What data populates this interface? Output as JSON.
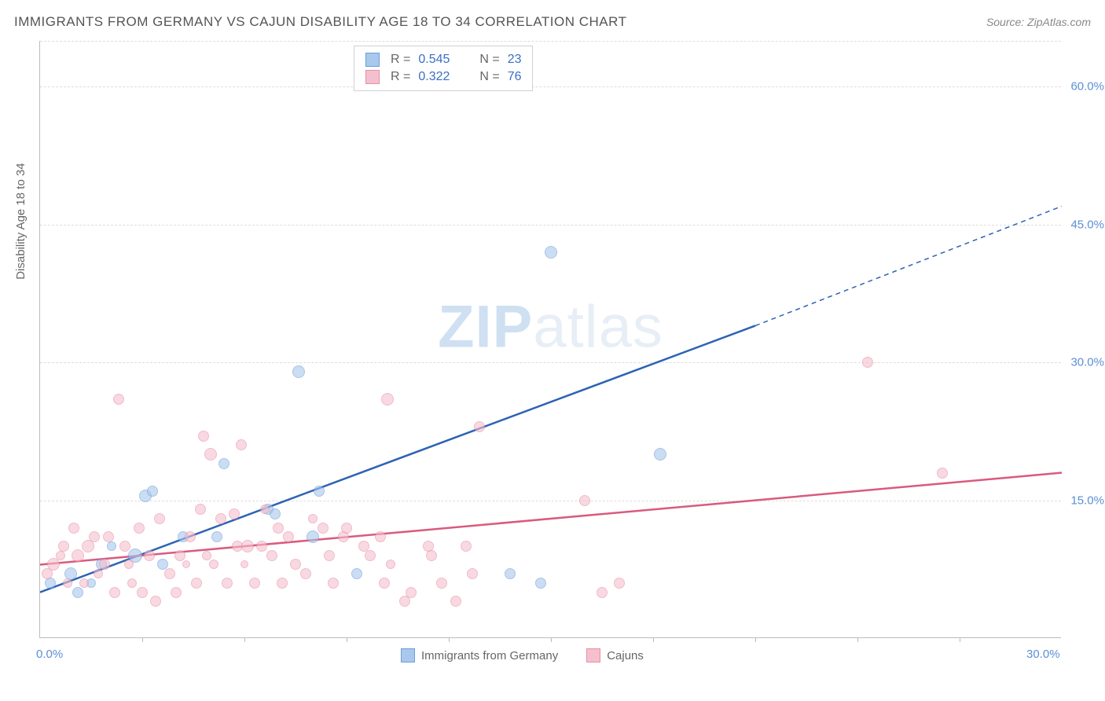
{
  "title": "IMMIGRANTS FROM GERMANY VS CAJUN DISABILITY AGE 18 TO 34 CORRELATION CHART",
  "source": "Source: ZipAtlas.com",
  "y_axis_title": "Disability Age 18 to 34",
  "watermark1": "ZIP",
  "watermark2": "atlas",
  "chart": {
    "type": "scatter",
    "background_color": "#ffffff",
    "grid_color": "#dddddd",
    "axis_color": "#bbbbbb",
    "tick_label_color": "#5b8fd6",
    "xlim": [
      0,
      30
    ],
    "ylim": [
      0,
      65
    ],
    "y_ticks": [
      {
        "v": 15,
        "label": "15.0%"
      },
      {
        "v": 30,
        "label": "30.0%"
      },
      {
        "v": 45,
        "label": "45.0%"
      },
      {
        "v": 60,
        "label": "60.0%"
      }
    ],
    "x_ticks": [
      {
        "v": 0,
        "label": "0.0%"
      },
      {
        "v": 30,
        "label": "30.0%"
      }
    ],
    "x_minor_ticks": [
      3,
      6,
      9,
      12,
      15,
      18,
      21,
      24,
      27
    ],
    "marker_radius_base": 7,
    "marker_opacity": 0.6,
    "series": [
      {
        "key": "germany",
        "name": "Immigrants from Germany",
        "fill": "#a9c8ec",
        "stroke": "#6a9edc",
        "line_color": "#2d63b3",
        "line_width": 2.5,
        "R": "0.545",
        "N": "23",
        "trend": {
          "x1": 0,
          "y1": 5,
          "x2": 21,
          "y2": 34,
          "x2_dash": 30,
          "y2_dash": 47
        },
        "points": [
          {
            "x": 0.3,
            "y": 6,
            "r": 7
          },
          {
            "x": 0.9,
            "y": 7,
            "r": 8
          },
          {
            "x": 1.1,
            "y": 5,
            "r": 7
          },
          {
            "x": 1.8,
            "y": 8,
            "r": 7
          },
          {
            "x": 2.8,
            "y": 9,
            "r": 9
          },
          {
            "x": 3.1,
            "y": 15.5,
            "r": 8
          },
          {
            "x": 3.3,
            "y": 16,
            "r": 7
          },
          {
            "x": 3.6,
            "y": 8,
            "r": 7
          },
          {
            "x": 4.2,
            "y": 11,
            "r": 7
          },
          {
            "x": 5.2,
            "y": 11,
            "r": 7
          },
          {
            "x": 5.4,
            "y": 19,
            "r": 7
          },
          {
            "x": 6.7,
            "y": 14,
            "r": 7
          },
          {
            "x": 6.9,
            "y": 13.5,
            "r": 7
          },
          {
            "x": 7.6,
            "y": 29,
            "r": 8
          },
          {
            "x": 8.0,
            "y": 11,
            "r": 8
          },
          {
            "x": 8.2,
            "y": 16,
            "r": 7
          },
          {
            "x": 9.3,
            "y": 7,
            "r": 7
          },
          {
            "x": 13.8,
            "y": 7,
            "r": 7
          },
          {
            "x": 14.7,
            "y": 6,
            "r": 7
          },
          {
            "x": 15.0,
            "y": 42,
            "r": 8
          },
          {
            "x": 18.2,
            "y": 20,
            "r": 8
          },
          {
            "x": 1.5,
            "y": 6,
            "r": 6
          },
          {
            "x": 2.1,
            "y": 10,
            "r": 6
          }
        ]
      },
      {
        "key": "cajuns",
        "name": "Cajuns",
        "fill": "#f4c0ce",
        "stroke": "#e88fa8",
        "line_color": "#d95a7e",
        "line_width": 2.5,
        "R": "0.322",
        "N": "76",
        "trend": {
          "x1": 0,
          "y1": 8,
          "x2": 30,
          "y2": 18
        },
        "points": [
          {
            "x": 0.2,
            "y": 7,
            "r": 7
          },
          {
            "x": 0.4,
            "y": 8,
            "r": 8
          },
          {
            "x": 0.6,
            "y": 9,
            "r": 6
          },
          {
            "x": 0.7,
            "y": 10,
            "r": 7
          },
          {
            "x": 0.8,
            "y": 6,
            "r": 6
          },
          {
            "x": 1.0,
            "y": 12,
            "r": 7
          },
          {
            "x": 1.1,
            "y": 9,
            "r": 8
          },
          {
            "x": 1.3,
            "y": 6,
            "r": 6
          },
          {
            "x": 1.4,
            "y": 10,
            "r": 8
          },
          {
            "x": 1.6,
            "y": 11,
            "r": 7
          },
          {
            "x": 1.7,
            "y": 7,
            "r": 6
          },
          {
            "x": 1.9,
            "y": 8,
            "r": 7
          },
          {
            "x": 2.0,
            "y": 11,
            "r": 7
          },
          {
            "x": 2.2,
            "y": 5,
            "r": 7
          },
          {
            "x": 2.3,
            "y": 26,
            "r": 7
          },
          {
            "x": 2.5,
            "y": 10,
            "r": 7
          },
          {
            "x": 2.6,
            "y": 8,
            "r": 6
          },
          {
            "x": 2.7,
            "y": 6,
            "r": 6
          },
          {
            "x": 2.9,
            "y": 12,
            "r": 7
          },
          {
            "x": 3.0,
            "y": 5,
            "r": 7
          },
          {
            "x": 3.2,
            "y": 9,
            "r": 7
          },
          {
            "x": 3.4,
            "y": 4,
            "r": 7
          },
          {
            "x": 3.5,
            "y": 13,
            "r": 7
          },
          {
            "x": 3.8,
            "y": 7,
            "r": 7
          },
          {
            "x": 4.0,
            "y": 5,
            "r": 7
          },
          {
            "x": 4.1,
            "y": 9,
            "r": 7
          },
          {
            "x": 4.4,
            "y": 11,
            "r": 7
          },
          {
            "x": 4.6,
            "y": 6,
            "r": 7
          },
          {
            "x": 4.7,
            "y": 14,
            "r": 7
          },
          {
            "x": 4.8,
            "y": 22,
            "r": 7
          },
          {
            "x": 4.9,
            "y": 9,
            "r": 6
          },
          {
            "x": 5.0,
            "y": 20,
            "r": 8
          },
          {
            "x": 5.1,
            "y": 8,
            "r": 6
          },
          {
            "x": 5.3,
            "y": 13,
            "r": 7
          },
          {
            "x": 5.5,
            "y": 6,
            "r": 7
          },
          {
            "x": 5.7,
            "y": 13.5,
            "r": 7
          },
          {
            "x": 5.8,
            "y": 10,
            "r": 7
          },
          {
            "x": 5.9,
            "y": 21,
            "r": 7
          },
          {
            "x": 6.1,
            "y": 10,
            "r": 8
          },
          {
            "x": 6.3,
            "y": 6,
            "r": 7
          },
          {
            "x": 6.5,
            "y": 10,
            "r": 7
          },
          {
            "x": 6.6,
            "y": 14,
            "r": 6
          },
          {
            "x": 6.8,
            "y": 9,
            "r": 7
          },
          {
            "x": 7.0,
            "y": 12,
            "r": 7
          },
          {
            "x": 7.1,
            "y": 6,
            "r": 7
          },
          {
            "x": 7.3,
            "y": 11,
            "r": 7
          },
          {
            "x": 7.5,
            "y": 8,
            "r": 7
          },
          {
            "x": 7.8,
            "y": 7,
            "r": 7
          },
          {
            "x": 8.0,
            "y": 13,
            "r": 6
          },
          {
            "x": 8.3,
            "y": 12,
            "r": 7
          },
          {
            "x": 8.5,
            "y": 9,
            "r": 7
          },
          {
            "x": 8.6,
            "y": 6,
            "r": 7
          },
          {
            "x": 8.9,
            "y": 11,
            "r": 7
          },
          {
            "x": 9.0,
            "y": 12,
            "r": 7
          },
          {
            "x": 9.5,
            "y": 10,
            "r": 7
          },
          {
            "x": 9.7,
            "y": 9,
            "r": 7
          },
          {
            "x": 10.0,
            "y": 11,
            "r": 7
          },
          {
            "x": 10.1,
            "y": 6,
            "r": 7
          },
          {
            "x": 10.2,
            "y": 26,
            "r": 8
          },
          {
            "x": 10.3,
            "y": 8,
            "r": 6
          },
          {
            "x": 10.7,
            "y": 4,
            "r": 7
          },
          {
            "x": 10.9,
            "y": 5,
            "r": 7
          },
          {
            "x": 11.4,
            "y": 10,
            "r": 7
          },
          {
            "x": 11.5,
            "y": 9,
            "r": 7
          },
          {
            "x": 11.8,
            "y": 6,
            "r": 7
          },
          {
            "x": 12.2,
            "y": 4,
            "r": 7
          },
          {
            "x": 12.5,
            "y": 10,
            "r": 7
          },
          {
            "x": 12.7,
            "y": 7,
            "r": 7
          },
          {
            "x": 12.9,
            "y": 23,
            "r": 7
          },
          {
            "x": 16.0,
            "y": 15,
            "r": 7
          },
          {
            "x": 16.5,
            "y": 5,
            "r": 7
          },
          {
            "x": 17.0,
            "y": 6,
            "r": 7
          },
          {
            "x": 24.3,
            "y": 30,
            "r": 7
          },
          {
            "x": 26.5,
            "y": 18,
            "r": 7
          },
          {
            "x": 4.3,
            "y": 8,
            "r": 5
          },
          {
            "x": 6.0,
            "y": 8,
            "r": 5
          }
        ]
      }
    ]
  },
  "legend_top_labels": {
    "R": "R =",
    "N": "N ="
  }
}
